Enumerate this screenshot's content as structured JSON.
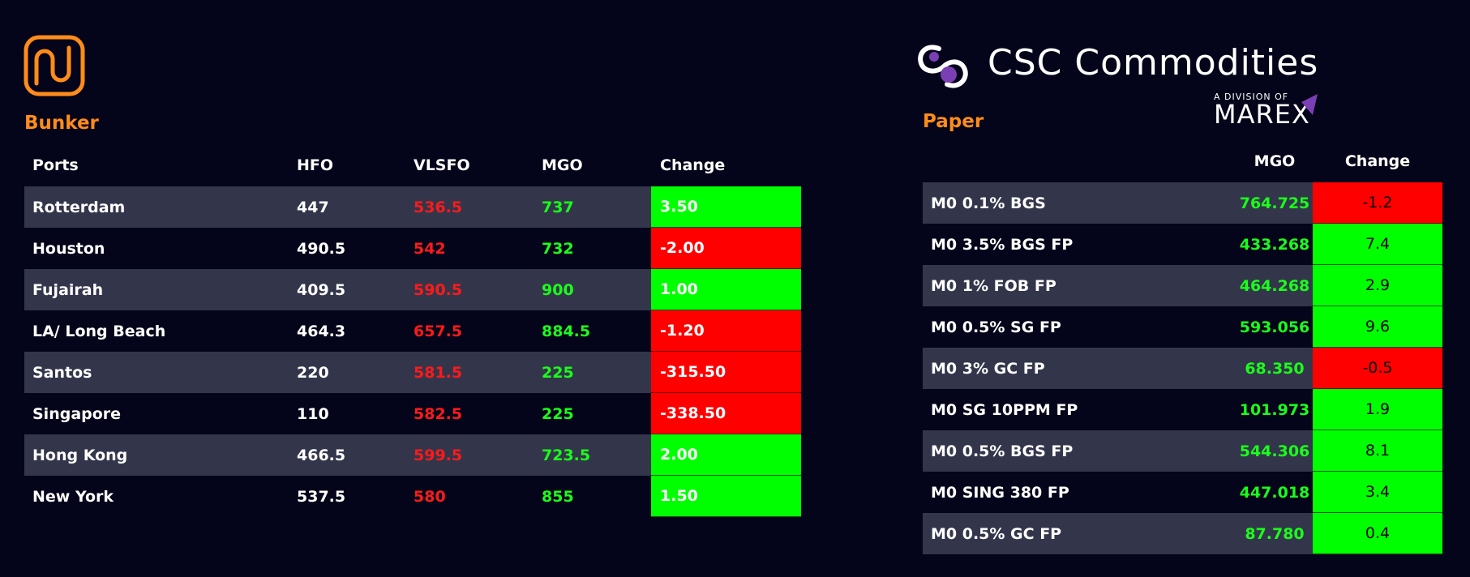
{
  "bunker": {
    "title": "Bunker",
    "headers": {
      "port": "Ports",
      "hfo": "HFO",
      "vlsfo": "VLSFO",
      "mgo": "MGO",
      "change": "Change"
    },
    "rows": [
      {
        "port": "Rotterdam",
        "hfo": "447",
        "vlsfo": "536.5",
        "mgo": "737",
        "change": "3.50",
        "direction": "up"
      },
      {
        "port": "Houston",
        "hfo": "490.5",
        "vlsfo": "542",
        "mgo": "732",
        "change": "-2.00",
        "direction": "down"
      },
      {
        "port": "Fujairah",
        "hfo": "409.5",
        "vlsfo": "590.5",
        "mgo": "900",
        "change": "1.00",
        "direction": "up"
      },
      {
        "port": "LA/ Long Beach",
        "hfo": "464.3",
        "vlsfo": "657.5",
        "mgo": "884.5",
        "change": "-1.20",
        "direction": "down"
      },
      {
        "port": "Santos",
        "hfo": "220",
        "vlsfo": "581.5",
        "mgo": "225",
        "change": "-315.50",
        "direction": "down"
      },
      {
        "port": "Singapore",
        "hfo": "110",
        "vlsfo": "582.5",
        "mgo": "225",
        "change": "-338.50",
        "direction": "down"
      },
      {
        "port": "Hong Kong",
        "hfo": "466.5",
        "vlsfo": "599.5",
        "mgo": "723.5",
        "change": "2.00",
        "direction": "up"
      },
      {
        "port": "New York",
        "hfo": "537.5",
        "vlsfo": "580",
        "mgo": "855",
        "change": "1.50",
        "direction": "up"
      }
    ]
  },
  "paper": {
    "title": "Paper",
    "brand": "CSC Commodities",
    "brand_subtitle": "A DIVISION OF",
    "brand_parent": "MAREX",
    "headers": {
      "name": "",
      "mgo": "MGO",
      "change": "Change"
    },
    "rows": [
      {
        "name": "M0 0.1% BGS",
        "mgo": "764.725",
        "change": "-1.2",
        "direction": "down"
      },
      {
        "name": "M0 3.5% BGS FP",
        "mgo": "433.268",
        "change": "7.4",
        "direction": "up"
      },
      {
        "name": "M0 1% FOB FP",
        "mgo": "464.268",
        "change": "2.9",
        "direction": "up"
      },
      {
        "name": "M0 0.5% SG FP",
        "mgo": "593.056",
        "change": "9.6",
        "direction": "up"
      },
      {
        "name": "M0 3% GC FP",
        "mgo": "68.350",
        "change": "-0.5",
        "direction": "down"
      },
      {
        "name": "M0 SG 10PPM FP",
        "mgo": "101.973",
        "change": "1.9",
        "direction": "up"
      },
      {
        "name": "M0 0.5% BGS FP",
        "mgo": "544.306",
        "change": "8.1",
        "direction": "up"
      },
      {
        "name": "M0 SING 380 FP",
        "mgo": "447.018",
        "change": "3.4",
        "direction": "up"
      },
      {
        "name": "M0 0.5% GC FP",
        "mgo": "87.780",
        "change": "0.4",
        "direction": "up"
      }
    ]
  },
  "colors": {
    "background": "#04041a",
    "accent_orange": "#ff8c1a",
    "row_shade": "#33364b",
    "positive": "#00ff00",
    "negative": "#ff0000",
    "brand_purple": "#7b3fb5"
  },
  "icons": {
    "bunker_logo": "bunker-logo-icon",
    "csc_logo": "csc-swirl-icon",
    "marex_mark": "marex-triangle-icon"
  }
}
